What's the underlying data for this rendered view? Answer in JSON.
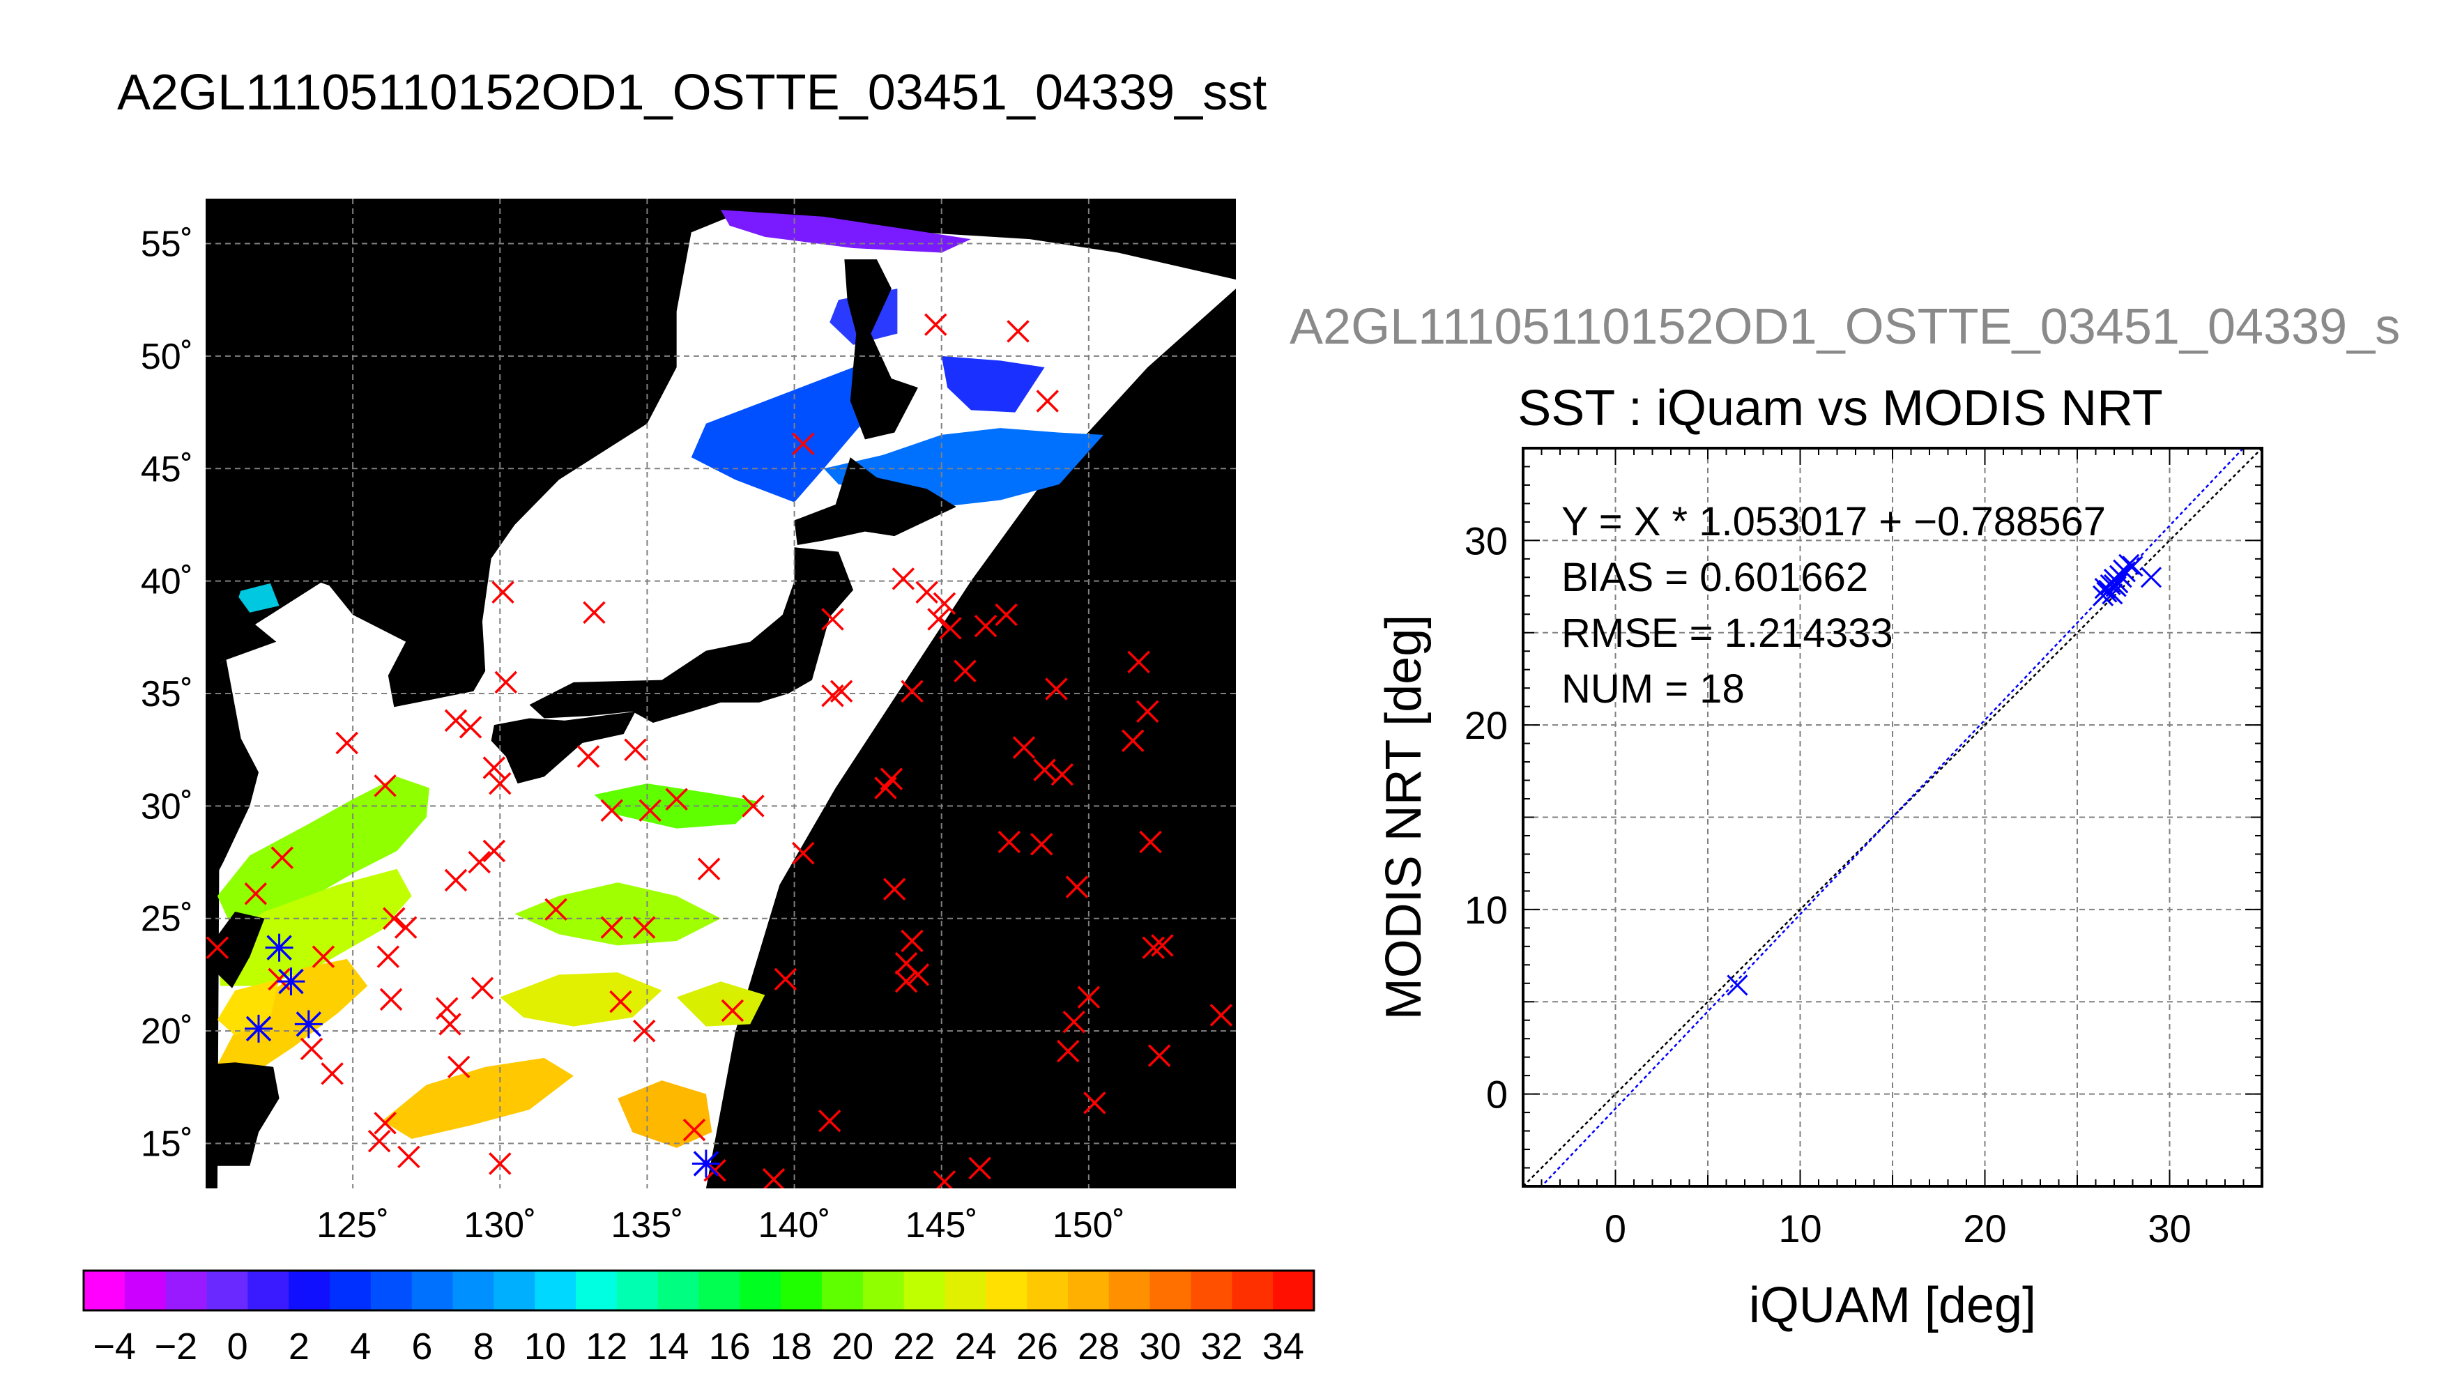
{
  "titles": {
    "main": "A2GL11105110152OD1_OSTTE_03451_04339_sst",
    "ghost": "A2GL11105110152OD1_OSTTE_03451_04339_s",
    "scatter": "SST : iQuam vs MODIS NRT"
  },
  "colors": {
    "land": "#000000",
    "cloud": "#ffffff",
    "marker_red": "#ff0000",
    "marker_blue": "#0000ff",
    "grid": "#808080"
  },
  "chart_data": [
    {
      "type": "heatmap",
      "name": "sst-map",
      "x_ticks": [
        "125˚",
        "130˚",
        "135˚",
        "140˚",
        "145˚",
        "150˚"
      ],
      "x_tick_values": [
        125,
        130,
        135,
        140,
        145,
        150
      ],
      "y_ticks": [
        "55˚",
        "50˚",
        "45˚",
        "40˚",
        "35˚",
        "30˚",
        "25˚",
        "20˚",
        "15˚"
      ],
      "y_tick_values": [
        55,
        50,
        45,
        40,
        35,
        30,
        25,
        20,
        15
      ],
      "xlim": [
        120,
        155
      ],
      "ylim": [
        13,
        57
      ],
      "grid": true,
      "colorbar": {
        "ticks": [
          "−4",
          "−2",
          "0",
          "2",
          "4",
          "6",
          "8",
          "10",
          "12",
          "14",
          "16",
          "18",
          "20",
          "22",
          "24",
          "26",
          "28",
          "30",
          "32",
          "34"
        ],
        "range": [
          -5,
          35
        ],
        "colors": [
          "#ff00ff",
          "#cc00ff",
          "#9a1aff",
          "#6a2aff",
          "#3a1aff",
          "#1010ff",
          "#0030ff",
          "#0050ff",
          "#0070ff",
          "#0090ff",
          "#00b0ff",
          "#00d8ff",
          "#00ffe0",
          "#00ffb0",
          "#00ff80",
          "#00ff50",
          "#00ff20",
          "#20ff00",
          "#60ff00",
          "#90ff00",
          "#c0ff00",
          "#e0f000",
          "#ffe000",
          "#ffc800",
          "#ffb000",
          "#ff9000",
          "#ff7000",
          "#ff5000",
          "#ff3000",
          "#ff1000"
        ]
      },
      "red_markers": [
        [
          140.3,
          46.1
        ],
        [
          144.8,
          51.4
        ],
        [
          147.6,
          51.1
        ],
        [
          148.6,
          48.0
        ],
        [
          130.1,
          39.5
        ],
        [
          133.2,
          38.6
        ],
        [
          143.7,
          40.1
        ],
        [
          144.5,
          39.5
        ],
        [
          145.1,
          39.0
        ],
        [
          144.9,
          38.3
        ],
        [
          145.3,
          37.9
        ],
        [
          146.5,
          38.0
        ],
        [
          147.2,
          38.5
        ],
        [
          141.3,
          38.3
        ],
        [
          145.8,
          36.0
        ],
        [
          148.9,
          35.2
        ],
        [
          151.7,
          36.4
        ],
        [
          152.0,
          34.2
        ],
        [
          141.6,
          35.1
        ],
        [
          141.3,
          34.9
        ],
        [
          144.0,
          35.1
        ],
        [
          128.5,
          33.8
        ],
        [
          129.0,
          33.5
        ],
        [
          130.2,
          35.5
        ],
        [
          133.0,
          32.2
        ],
        [
          134.6,
          32.5
        ],
        [
          124.8,
          32.8
        ],
        [
          129.8,
          31.7
        ],
        [
          130.0,
          31.0
        ],
        [
          147.8,
          32.6
        ],
        [
          148.5,
          31.6
        ],
        [
          149.1,
          31.4
        ],
        [
          151.5,
          32.9
        ],
        [
          143.3,
          31.2
        ],
        [
          143.1,
          30.8
        ],
        [
          126.1,
          30.9
        ],
        [
          136.0,
          30.3
        ],
        [
          133.8,
          29.8
        ],
        [
          135.1,
          29.8
        ],
        [
          138.6,
          30.0
        ],
        [
          147.3,
          28.4
        ],
        [
          148.4,
          28.3
        ],
        [
          152.1,
          28.4
        ],
        [
          129.3,
          27.5
        ],
        [
          129.8,
          28.0
        ],
        [
          122.6,
          27.7
        ],
        [
          121.7,
          26.1
        ],
        [
          140.3,
          27.9
        ],
        [
          137.1,
          27.2
        ],
        [
          149.6,
          26.4
        ],
        [
          143.4,
          26.3
        ],
        [
          128.5,
          26.7
        ],
        [
          126.4,
          25.0
        ],
        [
          126.8,
          24.6
        ],
        [
          131.9,
          25.4
        ],
        [
          133.8,
          24.6
        ],
        [
          134.9,
          24.6
        ],
        [
          120.4,
          23.7
        ],
        [
          124.0,
          23.3
        ],
        [
          126.2,
          23.3
        ],
        [
          144.0,
          24.0
        ],
        [
          143.8,
          23.0
        ],
        [
          143.8,
          22.2
        ],
        [
          144.2,
          22.5
        ],
        [
          152.2,
          23.7
        ],
        [
          152.5,
          23.8
        ],
        [
          150.0,
          21.5
        ],
        [
          154.5,
          20.7
        ],
        [
          129.4,
          21.9
        ],
        [
          128.2,
          21.0
        ],
        [
          128.3,
          20.3
        ],
        [
          126.3,
          21.4
        ],
        [
          134.1,
          21.3
        ],
        [
          134.9,
          20.0
        ],
        [
          139.7,
          22.3
        ],
        [
          137.9,
          20.9
        ],
        [
          149.5,
          20.4
        ],
        [
          149.3,
          19.1
        ],
        [
          152.4,
          18.9
        ],
        [
          124.3,
          18.1
        ],
        [
          123.6,
          19.2
        ],
        [
          128.6,
          18.4
        ],
        [
          126.1,
          15.9
        ],
        [
          125.9,
          15.1
        ],
        [
          126.9,
          14.4
        ],
        [
          130.0,
          14.1
        ],
        [
          141.2,
          16.0
        ],
        [
          150.2,
          16.8
        ],
        [
          136.6,
          15.6
        ],
        [
          137.3,
          13.8
        ],
        [
          139.3,
          13.4
        ],
        [
          145.1,
          13.3
        ],
        [
          146.3,
          13.9
        ],
        [
          122.5,
          22.3
        ]
      ],
      "blue_markers": [
        [
          121.8,
          20.1
        ],
        [
          122.5,
          23.7
        ],
        [
          122.9,
          22.2
        ],
        [
          123.5,
          20.3
        ],
        [
          137.0,
          14.1
        ]
      ]
    },
    {
      "type": "scatter",
      "name": "iquam-vs-modis",
      "title": "SST : iQuam vs MODIS NRT",
      "xlabel": "iQUAM [deg]",
      "ylabel": "MODIS NRT [deg]",
      "xlim": [
        -5,
        35
      ],
      "ylim": [
        -5,
        35
      ],
      "x_ticks": [
        0,
        10,
        20,
        30
      ],
      "y_ticks": [
        0,
        10,
        20,
        30
      ],
      "grid": true,
      "stats": [
        "Y = X * 1.053017 + −0.788567",
        "BIAS = 0.601662",
        "RMSE = 1.214333",
        "NUM = 18"
      ],
      "fit": {
        "slope": 1.053017,
        "intercept": -0.788567
      },
      "points": [
        [
          6.6,
          5.9
        ],
        [
          26.4,
          27.0
        ],
        [
          26.5,
          27.4
        ],
        [
          26.6,
          27.2
        ],
        [
          26.8,
          27.6
        ],
        [
          26.9,
          27.1
        ],
        [
          27.0,
          27.9
        ],
        [
          27.1,
          27.5
        ],
        [
          27.3,
          28.1
        ],
        [
          27.2,
          27.7
        ],
        [
          27.5,
          28.4
        ],
        [
          27.6,
          28.3
        ],
        [
          27.8,
          28.7
        ],
        [
          28.0,
          28.6
        ],
        [
          26.7,
          27.3
        ],
        [
          27.0,
          27.6
        ],
        [
          27.4,
          28.0
        ],
        [
          29.0,
          28.0
        ]
      ]
    }
  ]
}
